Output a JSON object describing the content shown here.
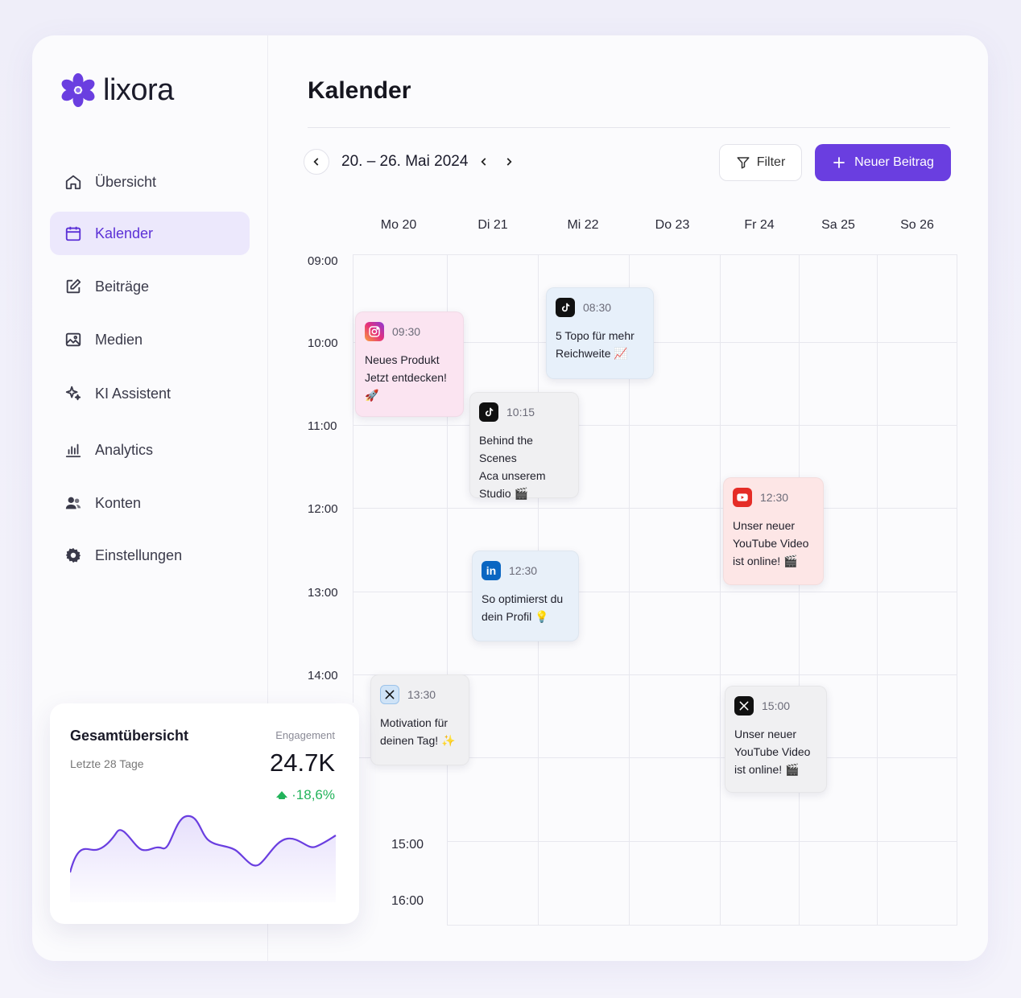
{
  "brand": {
    "name": "lixora",
    "accent": "#6a3ee0"
  },
  "sidebar": {
    "items": [
      {
        "label": "Übersicht",
        "icon": "home-icon"
      },
      {
        "label": "Kalender",
        "icon": "calendar-icon",
        "active": true
      },
      {
        "label": "Beiträge",
        "icon": "edit-icon"
      },
      {
        "label": "Medien",
        "icon": "image-icon"
      },
      {
        "label": "KI Assistent",
        "icon": "sparkle-icon"
      },
      {
        "label": "Analytics",
        "icon": "bar-chart-icon"
      },
      {
        "label": "Konten",
        "icon": "users-icon"
      },
      {
        "label": "Einstellungen",
        "icon": "gear-icon"
      }
    ]
  },
  "header": {
    "title": "Kalender",
    "date_range": "20. – 26. Mai 2024",
    "filter_label": "Filter",
    "new_post_label": "Neuer Beitrag"
  },
  "calendar": {
    "days": [
      "Mo 20",
      "Di 21",
      "Mi 22",
      "Do 23",
      "Fr 24",
      "Sa 25",
      "So 26"
    ],
    "times": [
      "09:00",
      "10:00",
      "11:00",
      "12:00",
      "13:00",
      "14:00",
      "15:00",
      "16:00"
    ],
    "events": [
      {
        "platform": "instagram",
        "time": "09:30",
        "lines": [
          "Neues Produkt",
          "Jetzt entdecken! 🚀"
        ]
      },
      {
        "platform": "tiktok",
        "time": "08:30",
        "lines": [
          "5 Topo für mehr",
          "Reichweite 📈"
        ]
      },
      {
        "platform": "tiktok",
        "time": "10:15",
        "lines": [
          "Behind the Scenes",
          "Aca unserem",
          "Studio 🎬"
        ]
      },
      {
        "platform": "linkedin",
        "time": "12:30",
        "lines": [
          "So optimierst du",
          "dein Profil 💡"
        ]
      },
      {
        "platform": "youtube",
        "time": "12:30",
        "lines": [
          "Unser neuer",
          "YouTube Video",
          "ist online! 🎬"
        ]
      },
      {
        "platform": "x",
        "time": "13:30",
        "lines": [
          "Motivation für",
          "deinen Tag! ✨"
        ]
      },
      {
        "platform": "x",
        "time": "15:00",
        "lines": [
          "Unser neuer",
          "YouTube Video",
          "ist online! 🎬"
        ]
      }
    ]
  },
  "overview": {
    "title": "Gesamtübersicht",
    "subtitle": "Letzte 28 Tage",
    "engagement_label": "Engagement",
    "value": "24.7K",
    "change": "·18,6%",
    "change_color": "#22b35a",
    "sparkline_color": "#6a3ee0"
  }
}
